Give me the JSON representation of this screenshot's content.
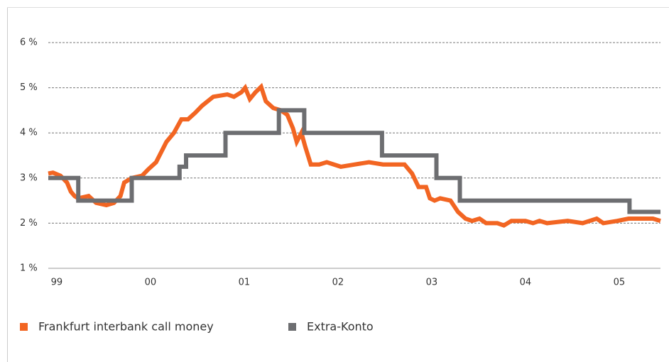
{
  "chart_data": {
    "type": "line",
    "xlim": [
      1998.91,
      2005.44
    ],
    "xticks": [
      {
        "value": 1999,
        "label": "99"
      },
      {
        "value": 2000,
        "label": "00"
      },
      {
        "value": 2001,
        "label": "01"
      },
      {
        "value": 2002,
        "label": "02"
      },
      {
        "value": 2003,
        "label": "03"
      },
      {
        "value": 2004,
        "label": "04"
      },
      {
        "value": 2005,
        "label": "05"
      }
    ],
    "ylim": [
      1,
      6
    ],
    "yticks": [
      {
        "value": 1,
        "label": "1 %"
      },
      {
        "value": 2,
        "label": "2 %"
      },
      {
        "value": 3,
        "label": "3 %"
      },
      {
        "value": 4,
        "label": "4 %"
      },
      {
        "value": 5,
        "label": "5 %"
      },
      {
        "value": 6,
        "label": "6 %"
      }
    ],
    "grid": true,
    "legend": "bottom",
    "series": [
      {
        "name": "Frankfurt interbank call money",
        "color": "#f26522",
        "x": [
          1998.91,
          1998.96,
          1999.04,
          1999.11,
          1999.15,
          1999.19,
          1999.23,
          1999.34,
          1999.42,
          1999.53,
          1999.61,
          1999.68,
          1999.72,
          1999.8,
          1999.91,
          1999.98,
          2000.06,
          2000.17,
          2000.25,
          2000.33,
          2000.4,
          2000.48,
          2000.55,
          2000.67,
          2000.82,
          2000.89,
          2000.97,
          2001.01,
          2001.06,
          2001.12,
          2001.18,
          2001.23,
          2001.31,
          2001.39,
          2001.46,
          2001.52,
          2001.56,
          2001.61,
          2001.65,
          2001.71,
          2001.8,
          2001.88,
          2002.03,
          2002.18,
          2002.33,
          2002.48,
          2002.71,
          2002.79,
          2002.86,
          2002.94,
          2002.98,
          2003.03,
          2003.09,
          2003.2,
          2003.28,
          2003.36,
          2003.43,
          2003.51,
          2003.58,
          2003.7,
          2003.77,
          2003.85,
          2004.0,
          2004.08,
          2004.15,
          2004.23,
          2004.45,
          2004.61,
          2004.76,
          2004.83,
          2004.98,
          2005.1,
          2005.36,
          2005.44
        ],
        "values": [
          3.1,
          3.12,
          3.05,
          2.9,
          2.7,
          2.6,
          2.55,
          2.6,
          2.45,
          2.4,
          2.45,
          2.6,
          2.9,
          3.0,
          3.05,
          3.2,
          3.35,
          3.8,
          4.0,
          4.3,
          4.3,
          4.45,
          4.6,
          4.8,
          4.85,
          4.8,
          4.9,
          5.0,
          4.75,
          4.9,
          5.02,
          4.7,
          4.55,
          4.5,
          4.4,
          4.1,
          3.8,
          4.0,
          3.7,
          3.3,
          3.3,
          3.35,
          3.25,
          3.3,
          3.35,
          3.3,
          3.3,
          3.1,
          2.8,
          2.8,
          2.55,
          2.5,
          2.55,
          2.5,
          2.25,
          2.1,
          2.05,
          2.1,
          2.0,
          2.0,
          1.95,
          2.05,
          2.05,
          2.0,
          2.05,
          2.0,
          2.05,
          2.0,
          2.1,
          2.0,
          2.05,
          2.1,
          2.1,
          2.05
        ]
      },
      {
        "name": "Extra-Konto",
        "color": "#6d6e71",
        "x": [
          1998.91,
          1999.23,
          1999.23,
          1999.8,
          1999.8,
          2000.31,
          2000.31,
          2000.38,
          2000.38,
          2000.8,
          2000.8,
          2001.37,
          2001.37,
          2001.64,
          2001.64,
          2002.47,
          2002.47,
          2003.05,
          2003.05,
          2003.3,
          2003.3,
          2005.11,
          2005.11,
          2005.44
        ],
        "values": [
          3,
          3,
          2.5,
          2.5,
          3,
          3,
          3.25,
          3.25,
          3.5,
          3.5,
          4,
          4,
          4.5,
          4.5,
          4,
          4,
          3.5,
          3.5,
          3,
          3,
          2.5,
          2.5,
          2.25,
          2.25
        ]
      }
    ]
  }
}
